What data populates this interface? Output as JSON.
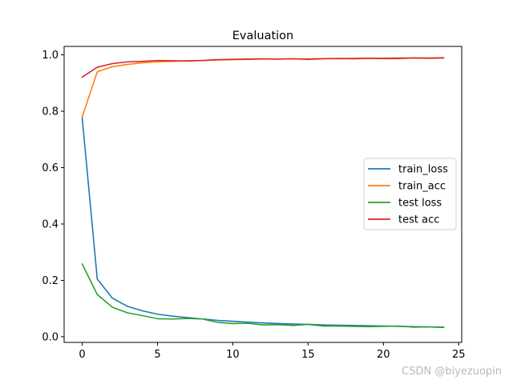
{
  "chart_data": {
    "type": "line",
    "title": "Evaluation",
    "xlabel": "",
    "ylabel": "",
    "xlim": [
      -1.2,
      25.2
    ],
    "ylim": [
      -0.02,
      1.03
    ],
    "xticks": [
      0,
      5,
      10,
      15,
      20,
      25
    ],
    "yticks": [
      0.0,
      0.2,
      0.4,
      0.6,
      0.8,
      1.0
    ],
    "grid": false,
    "legend_position": "center-right",
    "x": [
      0,
      1,
      2,
      3,
      4,
      5,
      6,
      7,
      8,
      9,
      10,
      11,
      12,
      13,
      14,
      15,
      16,
      17,
      18,
      19,
      20,
      21,
      22,
      23,
      24
    ],
    "series": [
      {
        "name": "train_loss",
        "color": "#1f77b4",
        "values": [
          0.777,
          0.205,
          0.137,
          0.108,
          0.092,
          0.08,
          0.073,
          0.068,
          0.063,
          0.058,
          0.055,
          0.052,
          0.049,
          0.047,
          0.045,
          0.044,
          0.042,
          0.041,
          0.04,
          0.039,
          0.038,
          0.037,
          0.036,
          0.035,
          0.034
        ]
      },
      {
        "name": "train_acc",
        "color": "#ff7f0e",
        "values": [
          0.78,
          0.94,
          0.958,
          0.966,
          0.972,
          0.975,
          0.977,
          0.979,
          0.98,
          0.982,
          0.983,
          0.984,
          0.985,
          0.985,
          0.986,
          0.986,
          0.987,
          0.987,
          0.988,
          0.988,
          0.988,
          0.989,
          0.989,
          0.989,
          0.99
        ]
      },
      {
        "name": "test loss",
        "color": "#2ca02c",
        "values": [
          0.258,
          0.15,
          0.105,
          0.085,
          0.075,
          0.064,
          0.063,
          0.065,
          0.063,
          0.051,
          0.047,
          0.048,
          0.042,
          0.043,
          0.04,
          0.044,
          0.038,
          0.038,
          0.037,
          0.036,
          0.037,
          0.038,
          0.034,
          0.035,
          0.033
        ]
      },
      {
        "name": "test acc",
        "color": "#d62728",
        "values": [
          0.921,
          0.956,
          0.969,
          0.975,
          0.977,
          0.98,
          0.979,
          0.978,
          0.98,
          0.983,
          0.984,
          0.985,
          0.986,
          0.985,
          0.986,
          0.984,
          0.986,
          0.987,
          0.986,
          0.988,
          0.987,
          0.987,
          0.989,
          0.988,
          0.989
        ]
      }
    ]
  },
  "watermark": "CSDN @biyezuopin"
}
